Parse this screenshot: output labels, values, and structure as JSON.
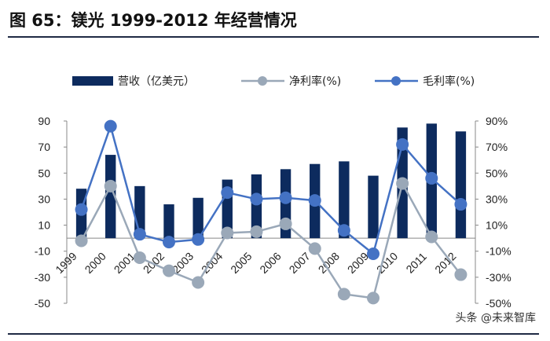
{
  "header": {
    "title": "图 65：镁光 1999-2012 年经营情况"
  },
  "watermark": "头条 @未来智库",
  "chart_data": {
    "type": "bar+line",
    "categories": [
      "1999",
      "2000",
      "2001",
      "2002",
      "2003",
      "2004",
      "2005",
      "2006",
      "2007",
      "2008",
      "2009",
      "2010",
      "2011",
      "2012"
    ],
    "series": [
      {
        "name": "营收（亿美元）",
        "type": "bar",
        "axis": "left",
        "color": "#0d2b5e",
        "values": [
          38,
          64,
          40,
          26,
          31,
          45,
          49,
          53,
          57,
          59,
          48,
          85,
          88,
          82
        ]
      },
      {
        "name": "净利率(%)",
        "type": "line",
        "axis": "right",
        "color": "#9aa8b8",
        "values": [
          -2,
          40,
          -15,
          -25,
          -34,
          4,
          5,
          11,
          -8,
          -43,
          -46,
          42,
          1,
          -28
        ]
      },
      {
        "name": "毛利率(%)",
        "type": "line",
        "axis": "right",
        "color": "#4472c4",
        "values": [
          22,
          86,
          3,
          -3,
          -1,
          35,
          30,
          31,
          29,
          6,
          -12,
          72,
          46,
          26
        ]
      }
    ],
    "y_left": {
      "min": -50,
      "max": 90,
      "ticks": [
        "90",
        "70",
        "50",
        "30",
        "10",
        "-10",
        "-30",
        "-50"
      ]
    },
    "y_right": {
      "min": -50,
      "max": 90,
      "ticks": [
        "90%",
        "70%",
        "50%",
        "30%",
        "10%",
        "-10%",
        "-30%",
        "-50%"
      ]
    },
    "legend_position": "top"
  }
}
